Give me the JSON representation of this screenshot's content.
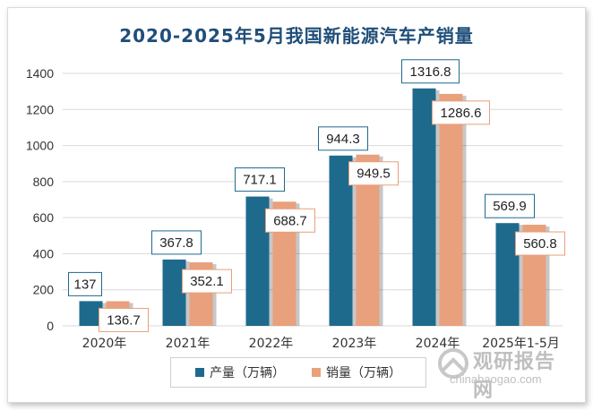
{
  "title": "2020-2025年5月我国新能源汽车产销量",
  "legend": {
    "production": "产量（万辆）",
    "sales": "销量（万辆）"
  },
  "watermark": {
    "brand": "观研报告网",
    "url": "chinabaogao.com"
  },
  "colors": {
    "production": "#1e6a8d",
    "sales": "#e9a07c",
    "grid": "#d9d9d9",
    "label_border_production": "#1e6a8d",
    "label_border_sales": "#e9a07c"
  },
  "chart_data": {
    "type": "bar",
    "title": "2020-2025年5月我国新能源汽车产销量",
    "categories": [
      "2020年",
      "2021年",
      "2022年",
      "2023年",
      "2024年",
      "2025年1-5月"
    ],
    "series": [
      {
        "name": "产量（万辆）",
        "values": [
          137,
          367.8,
          717.1,
          944.3,
          1316.8,
          569.9
        ],
        "labels": [
          "137",
          "367.8",
          "717.1",
          "944.3",
          "1316.8",
          "569.9"
        ]
      },
      {
        "name": "销量（万辆）",
        "values": [
          136.7,
          352.1,
          688.7,
          949.5,
          1286.6,
          560.8
        ],
        "labels": [
          "136.7",
          "352.1",
          "688.7",
          "949.5",
          "1286.6",
          "560.8"
        ]
      }
    ],
    "ylim": [
      0,
      1400
    ],
    "yticks": [
      0,
      200,
      400,
      600,
      800,
      1000,
      1200,
      1400
    ],
    "xlabel": "",
    "ylabel": "",
    "grid": true,
    "legend_position": "bottom"
  }
}
